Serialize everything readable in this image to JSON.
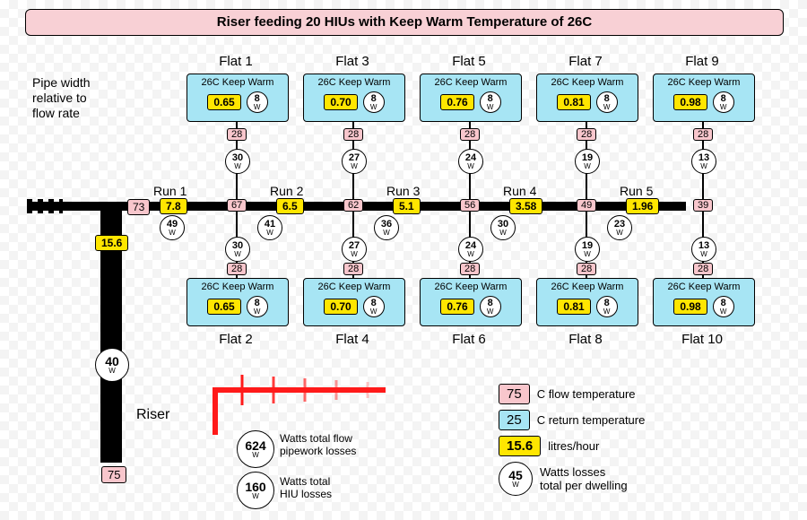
{
  "title": "Riser feeding 20 HIUs with Keep Warm Temperature of 26C",
  "annot_pipe": "Pipe width\nrelative to\nflow rate",
  "riser_label": "Riser",
  "riser_bottom_temp": "75",
  "riser_flow": "15.6",
  "riser_watts": "40",
  "main_entry_temp": "73",
  "main_exit_watts": "49",
  "runs": [
    {
      "label": "Run 1",
      "flow": "7.8",
      "node_temp": "67",
      "node_w": "41"
    },
    {
      "label": "Run 2",
      "flow": "6.5",
      "node_temp": "62",
      "node_w": "36"
    },
    {
      "label": "Run 3",
      "flow": "5.1",
      "node_temp": "56",
      "node_w": "30"
    },
    {
      "label": "Run 4",
      "flow": "3.58",
      "node_temp": "49",
      "node_w": "23"
    },
    {
      "label": "Run 5",
      "flow": "1.96",
      "node_temp": "39",
      "node_w": ""
    }
  ],
  "cols": [
    {
      "top": "Flat 1",
      "bot": "Flat 2",
      "kw": "26C Keep Warm",
      "flow": "0.65",
      "w8": "8",
      "ret": "28",
      "bw": "30"
    },
    {
      "top": "Flat 3",
      "bot": "Flat 4",
      "kw": "26C Keep Warm",
      "flow": "0.70",
      "w8": "8",
      "ret": "28",
      "bw": "27"
    },
    {
      "top": "Flat 5",
      "bot": "Flat 6",
      "kw": "26C Keep Warm",
      "flow": "0.76",
      "w8": "8",
      "ret": "28",
      "bw": "24"
    },
    {
      "top": "Flat 7",
      "bot": "Flat 8",
      "kw": "26C Keep Warm",
      "flow": "0.81",
      "w8": "8",
      "ret": "28",
      "bw": "19"
    },
    {
      "top": "Flat 9",
      "bot": "Flat 10",
      "kw": "26C Keep Warm",
      "flow": "0.98",
      "w8": "8",
      "ret": "28",
      "bw": "13"
    }
  ],
  "totals": {
    "flow_w": "624",
    "flow_txt": "Watts total flow\npipework losses",
    "hiu_w": "160",
    "hiu_txt": "Watts total\nHIU losses"
  },
  "legend": {
    "ctemp": "75",
    "ctemp_txt": "C flow temperature",
    "rtemp": "25",
    "rtemp_txt": "C return temperature",
    "flow": "15.6",
    "flow_txt": "litres/hour",
    "watts": "45",
    "watts_txt": "Watts losses\ntotal per dwelling"
  }
}
